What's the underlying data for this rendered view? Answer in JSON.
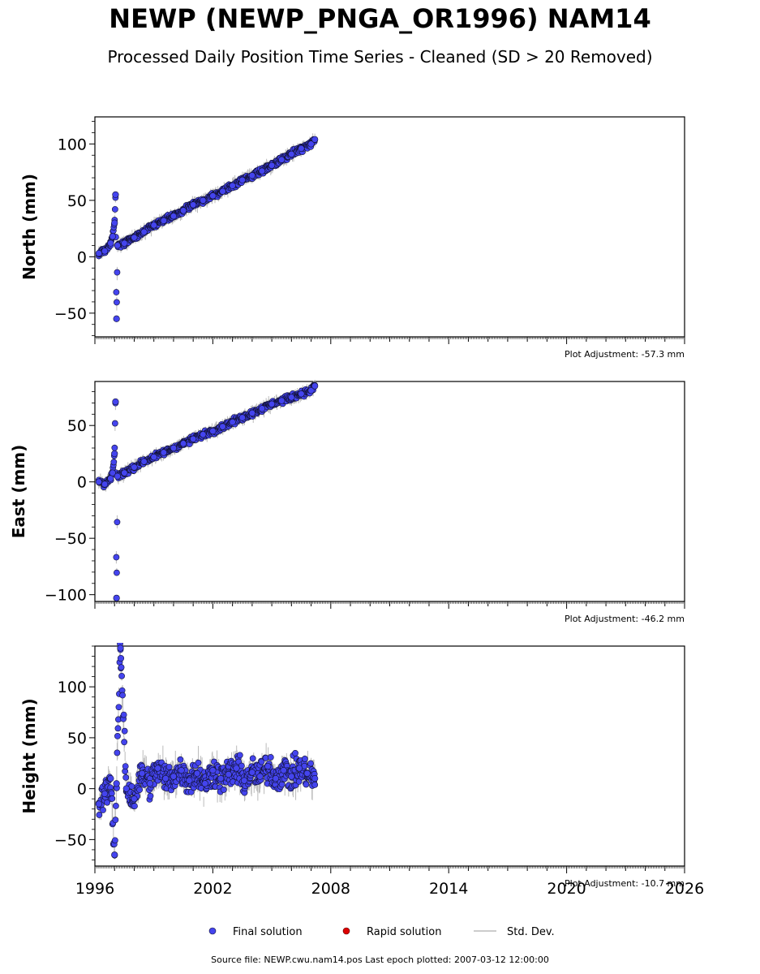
{
  "title": "NEWP (NEWP_PNGA_OR1996) NAM14",
  "subtitle": "Processed Daily Position Time Series - Cleaned (SD > 20 Removed)",
  "source_note": "Source file: NEWP.cwu.nam14.pos  Last epoch plotted: 2007-03-12 12:00:00",
  "legend": {
    "final": "Final solution",
    "rapid": "Rapid solution",
    "stddev": "Std. Dev."
  },
  "colors": {
    "final": "#4444ee",
    "final_edge": "#111133",
    "rapid": "#dd0000",
    "stddev": "#bbbbbb"
  },
  "chart_data": [
    {
      "type": "scatter",
      "ylabel": "North (mm)",
      "adjustment": "Plot Adjustment: -57.3 mm",
      "xlim": [
        1996,
        2026
      ],
      "ylim": [
        -71,
        124
      ],
      "yticks": [
        -50,
        0,
        50,
        100
      ],
      "xticks": [
        1996,
        2002,
        2008,
        2014,
        2020,
        2026
      ],
      "series": [
        {
          "x": [
            1996.2,
            1996.5,
            1996.8,
            1996.9,
            1997.0,
            1997.05,
            1997.1,
            1997.15,
            1997.5,
            1998.0,
            1998.5,
            1999.0,
            1999.5,
            2000.0,
            2000.5,
            2001.0,
            2001.5,
            2002.0,
            2002.5,
            2003.0,
            2003.5,
            2004.0,
            2004.5,
            2005.0,
            2005.5,
            2006.0,
            2006.5,
            2007.0,
            2007.19
          ],
          "y": [
            3,
            5,
            12,
            18,
            30,
            55,
            -55,
            10,
            12,
            17,
            22,
            28,
            32,
            36,
            41,
            46,
            50,
            54,
            58,
            63,
            68,
            72,
            76,
            81,
            86,
            91,
            96,
            100,
            104
          ]
        }
      ]
    },
    {
      "type": "scatter",
      "ylabel": "East (mm)",
      "adjustment": "Plot Adjustment: -46.2 mm",
      "xlim": [
        1996,
        2026
      ],
      "ylim": [
        -106,
        89
      ],
      "yticks": [
        -100,
        -50,
        0,
        50
      ],
      "xticks": [
        1996,
        2002,
        2008,
        2014,
        2020,
        2026
      ],
      "series": [
        {
          "x": [
            1996.2,
            1996.5,
            1996.8,
            1996.9,
            1997.0,
            1997.05,
            1997.1,
            1997.15,
            1997.5,
            1998.0,
            1998.5,
            1999.0,
            1999.5,
            2000.0,
            2000.5,
            2001.0,
            2001.5,
            2002.0,
            2002.5,
            2003.0,
            2003.5,
            2004.0,
            2004.5,
            2005.0,
            2005.5,
            2006.0,
            2006.5,
            2007.0,
            2007.19
          ],
          "y": [
            0,
            -2,
            3,
            8,
            25,
            71,
            -103,
            5,
            8,
            13,
            18,
            22,
            26,
            30,
            34,
            38,
            42,
            45,
            49,
            53,
            57,
            61,
            65,
            69,
            72,
            75,
            78,
            81,
            85
          ]
        }
      ]
    },
    {
      "type": "scatter",
      "ylabel": "Height (mm)",
      "adjustment": "Plot Adjustment: -10.7 mm",
      "xlim": [
        1996,
        2026
      ],
      "ylim": [
        -76,
        140
      ],
      "yticks": [
        -50,
        0,
        50,
        100
      ],
      "xticks": [
        1996,
        2002,
        2008,
        2014,
        2020,
        2026
      ],
      "xtick_labels": [
        "1996",
        "2002",
        "2008",
        "2014",
        "2020",
        "2026"
      ],
      "series": [
        {
          "x": [
            1996.2,
            1996.5,
            1996.8,
            1997.0,
            1997.1,
            1997.3,
            1997.32,
            1997.6,
            1998.0,
            1998.4,
            1998.8,
            1999.2,
            1999.6,
            2000.0,
            2000.4,
            2000.8,
            2001.2,
            2001.6,
            2002.0,
            2002.4,
            2002.8,
            2003.2,
            2003.6,
            2004.0,
            2004.4,
            2004.8,
            2005.2,
            2005.6,
            2006.0,
            2006.4,
            2006.8,
            2007.19
          ],
          "y": [
            -15,
            -5,
            10,
            -65,
            5,
            138,
            128,
            0,
            -10,
            15,
            5,
            20,
            10,
            12,
            18,
            8,
            15,
            5,
            18,
            10,
            14,
            20,
            8,
            16,
            12,
            22,
            10,
            18,
            12,
            20,
            15,
            10
          ]
        }
      ]
    }
  ]
}
